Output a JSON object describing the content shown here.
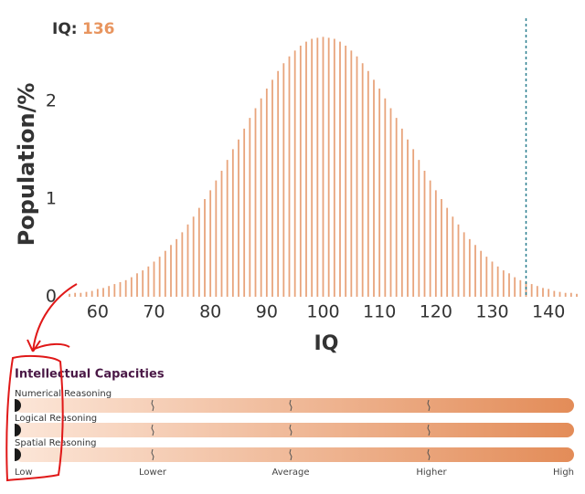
{
  "chart_data": {
    "type": "bar",
    "marker": {
      "label": "IQ:",
      "value": 136,
      "color": "#2a7f8f"
    },
    "y_label": "Population/%",
    "x_label": "IQ",
    "color": "#e8a47c",
    "x": [
      55,
      56,
      57,
      58,
      59,
      60,
      61,
      62,
      63,
      64,
      65,
      66,
      67,
      68,
      69,
      70,
      71,
      72,
      73,
      74,
      75,
      76,
      77,
      78,
      79,
      80,
      81,
      82,
      83,
      84,
      85,
      86,
      87,
      88,
      89,
      90,
      91,
      92,
      93,
      94,
      95,
      96,
      97,
      98,
      99,
      100,
      101,
      102,
      103,
      104,
      105,
      106,
      107,
      108,
      109,
      110,
      111,
      112,
      113,
      114,
      115,
      116,
      117,
      118,
      119,
      120,
      121,
      122,
      123,
      124,
      125,
      126,
      127,
      128,
      129,
      130,
      131,
      132,
      133,
      134,
      135,
      136,
      137,
      138,
      139,
      140,
      141,
      142,
      143,
      144,
      145
    ],
    "values": [
      0.03,
      0.04,
      0.04,
      0.05,
      0.06,
      0.08,
      0.09,
      0.11,
      0.13,
      0.15,
      0.17,
      0.2,
      0.24,
      0.27,
      0.31,
      0.36,
      0.41,
      0.47,
      0.53,
      0.59,
      0.66,
      0.74,
      0.82,
      0.91,
      1.0,
      1.09,
      1.19,
      1.29,
      1.4,
      1.51,
      1.61,
      1.72,
      1.83,
      1.93,
      2.03,
      2.13,
      2.22,
      2.31,
      2.39,
      2.46,
      2.52,
      2.57,
      2.61,
      2.64,
      2.65,
      2.66,
      2.65,
      2.64,
      2.61,
      2.57,
      2.52,
      2.46,
      2.39,
      2.31,
      2.22,
      2.13,
      2.03,
      1.93,
      1.83,
      1.72,
      1.61,
      1.51,
      1.4,
      1.29,
      1.19,
      1.09,
      1.0,
      0.91,
      0.82,
      0.74,
      0.66,
      0.59,
      0.53,
      0.47,
      0.41,
      0.36,
      0.31,
      0.27,
      0.24,
      0.2,
      0.17,
      0.15,
      0.13,
      0.11,
      0.09,
      0.08,
      0.06,
      0.05,
      0.04,
      0.04,
      0.03
    ],
    "xlim": [
      55,
      145
    ],
    "xticks": [
      60,
      70,
      80,
      90,
      100,
      110,
      120,
      130,
      140
    ],
    "ylim": [
      0,
      2.85
    ],
    "yticks": [
      0,
      1,
      2
    ]
  },
  "capacities": {
    "title": "Intellectual Capacities",
    "items": [
      "Numerical Reasoning",
      "Logical Reasoning",
      "Spatial Reasoning"
    ],
    "scale": [
      "Low",
      "Lower",
      "Average",
      "Higher",
      "High"
    ]
  }
}
